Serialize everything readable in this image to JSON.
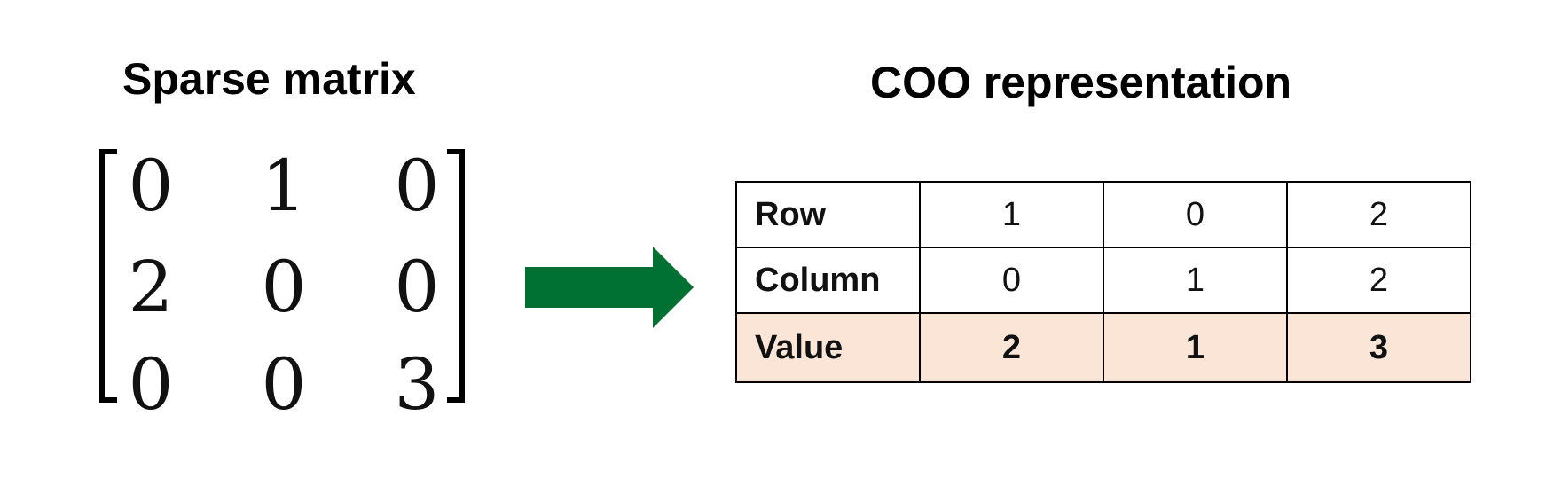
{
  "titles": {
    "left": "Sparse matrix",
    "right": "COO representation"
  },
  "matrix": {
    "rows": [
      [
        "0",
        "1",
        "0"
      ],
      [
        "2",
        "0",
        "0"
      ],
      [
        "0",
        "0",
        "3"
      ]
    ]
  },
  "arrow": {
    "color": "#007033",
    "direction": "right"
  },
  "coo_table": {
    "highlight_color": "#fbe5d6",
    "rows": [
      {
        "label": "Row",
        "values": [
          "1",
          "0",
          "2"
        ]
      },
      {
        "label": "Column",
        "values": [
          "0",
          "1",
          "2"
        ]
      },
      {
        "label": "Value",
        "values": [
          "2",
          "1",
          "3"
        ]
      }
    ]
  }
}
